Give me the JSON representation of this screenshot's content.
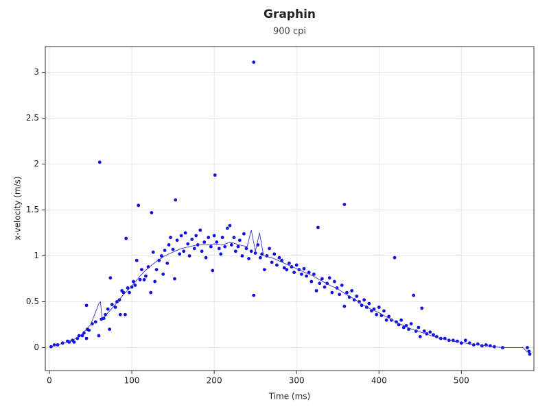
{
  "chart_data": {
    "type": "scatter",
    "title": "Graphin",
    "subtitle": "900 cpi",
    "x_label": "Time (ms)",
    "y_label": "x-velocity (m/s)",
    "xlim": [
      -5,
      588
    ],
    "ylim": [
      -0.25,
      3.28
    ],
    "xticks": [
      0,
      100,
      200,
      300,
      400,
      500
    ],
    "yticks": [
      0,
      0.5,
      1,
      1.5,
      2,
      2.5,
      3
    ],
    "grid": true,
    "series": [
      {
        "kind": "scatter",
        "color": "#1010e0",
        "x": [
          2,
          6,
          10,
          16,
          22,
          24,
          28,
          30,
          34,
          36,
          40,
          42,
          45,
          45,
          46,
          48,
          52,
          56,
          60,
          61,
          63,
          66,
          68,
          71,
          73,
          74,
          76,
          80,
          82,
          85,
          86,
          88,
          90,
          92,
          93,
          95,
          97,
          100,
          102,
          104,
          106,
          108,
          110,
          112,
          115,
          117,
          120,
          123,
          124,
          126,
          128,
          130,
          133,
          136,
          138,
          140,
          143,
          145,
          147,
          150,
          152,
          153,
          155,
          158,
          160,
          163,
          165,
          168,
          170,
          173,
          176,
          178,
          180,
          183,
          185,
          188,
          190,
          193,
          196,
          198,
          200,
          201,
          203,
          206,
          208,
          210,
          213,
          216,
          219,
          221,
          224,
          226,
          229,
          231,
          234,
          236,
          239,
          242,
          245,
          248,
          248,
          250,
          253,
          256,
          258,
          261,
          264,
          267,
          270,
          273,
          276,
          279,
          282,
          285,
          288,
          291,
          294,
          297,
          300,
          303,
          306,
          309,
          312,
          315,
          318,
          321,
          324,
          326,
          328,
          331,
          334,
          337,
          340,
          343,
          346,
          349,
          352,
          355,
          358,
          358,
          361,
          364,
          367,
          370,
          373,
          376,
          379,
          382,
          385,
          388,
          391,
          394,
          397,
          400,
          403,
          406,
          409,
          412,
          415,
          419,
          421,
          424,
          427,
          430,
          433,
          436,
          439,
          442,
          445,
          448,
          450,
          452,
          455,
          458,
          462,
          466,
          470,
          475,
          480,
          485,
          490,
          495,
          500,
          505,
          510,
          515,
          520,
          525,
          530,
          535,
          540,
          550,
          580,
          582,
          583
        ],
        "values": [
          0.01,
          0.03,
          0.03,
          0.05,
          0.07,
          0.06,
          0.08,
          0.06,
          0.1,
          0.13,
          0.13,
          0.16,
          0.1,
          0.46,
          0.2,
          0.19,
          0.26,
          0.28,
          0.13,
          2.02,
          0.31,
          0.32,
          0.36,
          0.42,
          0.2,
          0.76,
          0.47,
          0.44,
          0.5,
          0.52,
          0.36,
          0.62,
          0.6,
          0.36,
          1.19,
          0.65,
          0.6,
          0.66,
          0.72,
          0.68,
          0.95,
          1.55,
          0.74,
          0.85,
          0.74,
          0.78,
          0.88,
          0.6,
          1.47,
          1.04,
          0.72,
          0.85,
          0.95,
          1.0,
          0.8,
          1.06,
          0.92,
          1.12,
          1.2,
          1.07,
          0.75,
          1.61,
          1.17,
          1.02,
          1.22,
          1.05,
          1.25,
          1.13,
          1.0,
          1.18,
          1.08,
          1.22,
          1.12,
          1.28,
          1.05,
          1.15,
          0.98,
          1.2,
          1.1,
          0.84,
          1.22,
          1.88,
          1.15,
          1.08,
          1.02,
          1.2,
          1.1,
          1.3,
          1.33,
          1.12,
          1.2,
          1.05,
          1.1,
          1.17,
          1.0,
          1.24,
          1.08,
          0.97,
          1.05,
          3.11,
          0.57,
          1.03,
          1.12,
          0.98,
          1.02,
          0.85,
          1.0,
          1.08,
          0.93,
          1.02,
          0.9,
          0.98,
          0.95,
          0.87,
          0.85,
          0.92,
          0.88,
          0.82,
          0.9,
          0.85,
          0.8,
          0.86,
          0.78,
          0.82,
          0.72,
          0.8,
          0.62,
          1.31,
          0.7,
          0.75,
          0.66,
          0.7,
          0.76,
          0.6,
          0.72,
          0.65,
          0.58,
          0.68,
          1.56,
          0.45,
          0.6,
          0.55,
          0.62,
          0.52,
          0.56,
          0.5,
          0.46,
          0.52,
          0.44,
          0.48,
          0.4,
          0.42,
          0.36,
          0.44,
          0.35,
          0.4,
          0.3,
          0.34,
          0.3,
          0.98,
          0.28,
          0.25,
          0.3,
          0.22,
          0.24,
          0.2,
          0.26,
          0.57,
          0.18,
          0.22,
          0.12,
          0.43,
          0.18,
          0.15,
          0.17,
          0.14,
          0.12,
          0.1,
          0.1,
          0.08,
          0.08,
          0.07,
          0.05,
          0.08,
          0.05,
          0.03,
          0.04,
          0.02,
          0.03,
          0.02,
          0.01,
          0.0,
          0.0,
          -0.04,
          -0.07
        ]
      },
      {
        "kind": "line",
        "color": "#3030d0",
        "x": [
          0,
          10,
          20,
          30,
          40,
          50,
          60,
          62,
          64,
          70,
          80,
          90,
          100,
          110,
          120,
          130,
          140,
          150,
          160,
          170,
          180,
          190,
          200,
          210,
          220,
          230,
          240,
          245,
          250,
          255,
          260,
          270,
          280,
          290,
          300,
          310,
          320,
          330,
          340,
          350,
          360,
          370,
          380,
          390,
          400,
          410,
          420,
          430,
          440,
          450,
          460,
          470,
          480,
          490,
          500,
          510,
          520,
          530,
          550,
          575,
          580
        ],
        "values": [
          0.01,
          0.03,
          0.06,
          0.09,
          0.15,
          0.25,
          0.48,
          0.5,
          0.3,
          0.37,
          0.47,
          0.58,
          0.67,
          0.78,
          0.87,
          0.94,
          1.0,
          1.04,
          1.08,
          1.1,
          1.12,
          1.12,
          1.13,
          1.12,
          1.15,
          1.12,
          1.1,
          1.28,
          1.05,
          1.25,
          1.0,
          0.98,
          0.94,
          0.9,
          0.86,
          0.82,
          0.78,
          0.73,
          0.68,
          0.64,
          0.58,
          0.53,
          0.47,
          0.42,
          0.38,
          0.33,
          0.28,
          0.24,
          0.2,
          0.17,
          0.14,
          0.11,
          0.09,
          0.07,
          0.06,
          0.04,
          0.03,
          0.02,
          0.0,
          0.0,
          -0.05
        ]
      }
    ]
  }
}
